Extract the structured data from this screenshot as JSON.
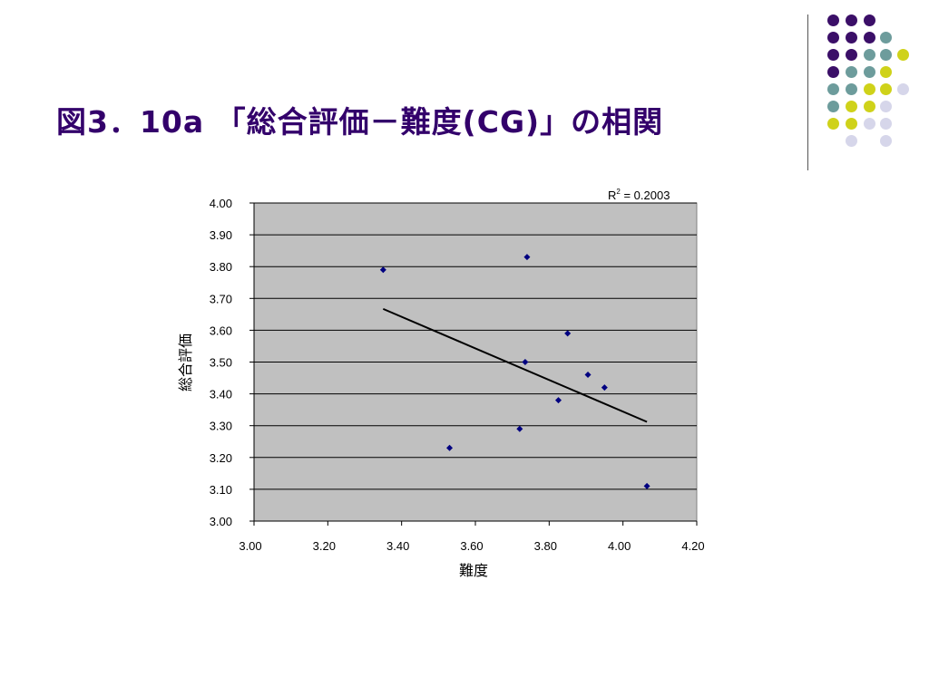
{
  "slide": {
    "title": "図3．10a 「総合評価－難度(CG)」の相関"
  },
  "decoration": {
    "colors": {
      "purple": "#3b0f68",
      "teal": "#6d9c9c",
      "yellow": "#cfd21a",
      "lavender": "#d6d6ea"
    }
  },
  "chart_data": {
    "type": "scatter",
    "xlabel": "難度",
    "ylabel": "総合評価",
    "xlim": [
      3.0,
      4.2
    ],
    "ylim": [
      3.0,
      4.0
    ],
    "x_ticks": [
      "3.00",
      "3.20",
      "3.40",
      "3.60",
      "3.80",
      "4.00",
      "4.20"
    ],
    "y_ticks": [
      "3.00",
      "3.10",
      "3.20",
      "3.30",
      "3.40",
      "3.50",
      "3.60",
      "3.70",
      "3.80",
      "3.90",
      "4.00"
    ],
    "grid": "horizontal",
    "plot_background": "#c0c0c0",
    "marker_color": "#000080",
    "points": [
      {
        "x": 3.35,
        "y": 3.79
      },
      {
        "x": 3.53,
        "y": 3.23
      },
      {
        "x": 3.72,
        "y": 3.29
      },
      {
        "x": 3.735,
        "y": 3.5
      },
      {
        "x": 3.74,
        "y": 3.83
      },
      {
        "x": 3.825,
        "y": 3.38
      },
      {
        "x": 3.85,
        "y": 3.59
      },
      {
        "x": 3.905,
        "y": 3.46
      },
      {
        "x": 3.95,
        "y": 3.42
      },
      {
        "x": 4.065,
        "y": 3.11
      }
    ],
    "trendline": {
      "x": [
        3.35,
        4.065
      ],
      "y": [
        3.667,
        3.312
      ]
    },
    "r2_label": {
      "base": "R",
      "exp": "2",
      "rest": " = 0.2003"
    }
  }
}
